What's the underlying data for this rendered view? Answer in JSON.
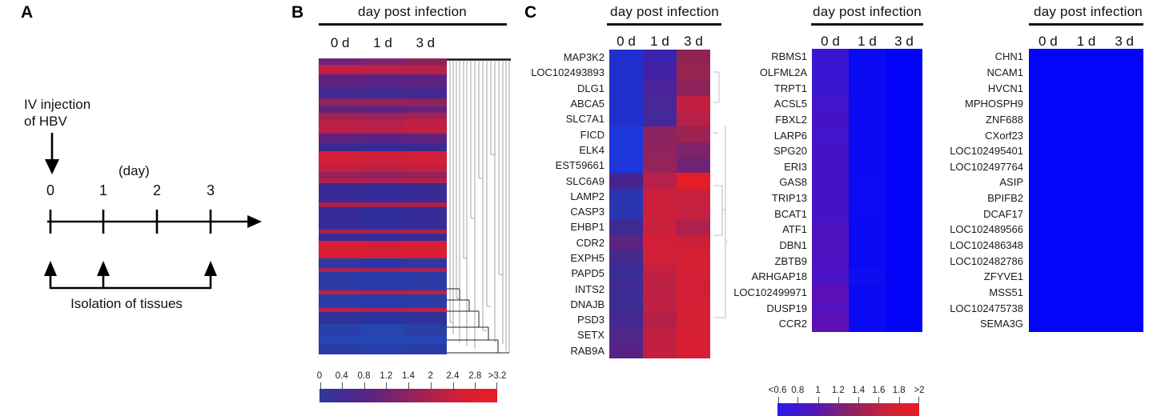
{
  "figure": {
    "panel_a": {
      "label": "A",
      "injection_line1": "IV injection",
      "injection_line2": "of HBV",
      "axis_unit": "(day)",
      "ticks": [
        "0",
        "1",
        "2",
        "3"
      ],
      "isolation_label": "Isolation of tissues"
    },
    "panel_b": {
      "label": "B",
      "header": "day post infection",
      "columns": [
        "0 d",
        "1 d",
        "3 d"
      ],
      "colorbar": {
        "labels": [
          "0",
          "0.4",
          "0.8",
          "1.2",
          "1.4",
          "2",
          "2.4",
          "2.8",
          ">3.2"
        ],
        "gradient": [
          "#2e3a9b",
          "#452b92",
          "#5c2382",
          "#7c236b",
          "#a02153",
          "#c42040",
          "#de1e2b",
          "#e81c24"
        ]
      },
      "bands": [
        [
          8,
          "#6e2379",
          "#7e2370",
          "#8a2359"
        ],
        [
          12,
          "#c11f43",
          "#bd2046",
          "#b62049"
        ],
        [
          16,
          "#5d2381",
          "#572386",
          "#5d2381"
        ],
        [
          14,
          "#43288f",
          "#3f2a93",
          "#43288f"
        ],
        [
          10,
          "#8c2363",
          "#932359",
          "#8c2360"
        ],
        [
          8,
          "#5f237f",
          "#5b2384",
          "#642379"
        ],
        [
          8,
          "#a42152",
          "#9e2157",
          "#a62151"
        ],
        [
          18,
          "#ba2046",
          "#b62049",
          "#bf2043"
        ],
        [
          12,
          "#5e2380",
          "#582385",
          "#5e2380"
        ],
        [
          10,
          "#3c2a92",
          "#382b96",
          "#3c2a92"
        ],
        [
          18,
          "#d11f37",
          "#cd1f3a",
          "#d11f37"
        ],
        [
          8,
          "#c22041",
          "#bc2045",
          "#c22041"
        ],
        [
          8,
          "#93235a",
          "#8c2360",
          "#932359"
        ],
        [
          6,
          "#b32049",
          "#ae204d",
          "#b32049"
        ],
        [
          24,
          "#3a2b94",
          "#352c99",
          "#3a2b94"
        ],
        [
          6,
          "#a92150",
          "#a32154",
          "#a92150"
        ],
        [
          28,
          "#372c97",
          "#322d9c",
          "#372c97"
        ],
        [
          5,
          "#ae204d",
          "#a92150",
          "#ae204d"
        ],
        [
          9,
          "#362c98",
          "#312d9d",
          "#362c98"
        ],
        [
          22,
          "#d71e33",
          "#d31f35",
          "#d71e33"
        ],
        [
          12,
          "#2c39a4",
          "#2838a8",
          "#2c39a4"
        ],
        [
          5,
          "#b0204c",
          "#ab204f",
          "#b0204c"
        ],
        [
          23,
          "#2a3ba6",
          "#273aa9",
          "#2a3ba6"
        ],
        [
          5,
          "#bf2043",
          "#ba2046",
          "#bf2043"
        ],
        [
          17,
          "#2a3ba6",
          "#273aa9",
          "#2a3ba6"
        ],
        [
          5,
          "#bc2045",
          "#b72048",
          "#bc2045"
        ],
        [
          15,
          "#303199",
          "#2c329e",
          "#303199"
        ],
        [
          14,
          "#2840ab",
          "#2545b0",
          "#2a3ea8"
        ],
        [
          12,
          "#2545b2",
          "#2248b6",
          "#2545b2"
        ],
        [
          12,
          "#2a3ba6",
          "#283da9",
          "#2a3ba6"
        ]
      ]
    },
    "panel_c": {
      "label": "C",
      "heatmaps": [
        {
          "header": "day post infection",
          "columns": [
            "0 d",
            "1 d",
            "3 d"
          ],
          "genes": [
            "MAP3K2",
            "LOC102493893",
            "DLG1",
            "ABCA5",
            "SLC7A1",
            "FICD",
            "ELK4",
            "EST59661",
            "SLC6A9",
            "LAMP2",
            "CASP3",
            "EHBP1",
            "CDR2",
            "EXPH5",
            "PAPD5",
            "INTS2",
            "DNAJB",
            "PSD3",
            "SETX",
            "RAB9A"
          ],
          "cells": [
            [
              "#2030ce",
              "#3b23ae",
              "#8f2353"
            ],
            [
              "#2030ce",
              "#4420a4",
              "#962350"
            ],
            [
              "#2030ce",
              "#4c2396",
              "#8c235b"
            ],
            [
              "#2130cc",
              "#4a2798",
              "#c22040"
            ],
            [
              "#2130cc",
              "#44299a",
              "#b82048"
            ],
            [
              "#1c38dc",
              "#8c2361",
              "#9e2250"
            ],
            [
              "#1c38dc",
              "#90235c",
              "#7e236a"
            ],
            [
              "#1d36da",
              "#95235a",
              "#702374"
            ],
            [
              "#45248e",
              "#b8204a",
              "#e61c26"
            ],
            [
              "#2c34b2",
              "#cc1f3b",
              "#c9203e"
            ],
            [
              "#2936b0",
              "#cc1f3b",
              "#c62040"
            ],
            [
              "#3e2b92",
              "#c9203d",
              "#ae204e"
            ],
            [
              "#5e2381",
              "#d11f37",
              "#cc1f3a"
            ],
            [
              "#44298f",
              "#d11f37",
              "#d41f35"
            ],
            [
              "#3b2d96",
              "#c22041",
              "#d41f35"
            ],
            [
              "#402b93",
              "#bb2045",
              "#d21f36"
            ],
            [
              "#3b2c96",
              "#c02042",
              "#d41f35"
            ],
            [
              "#442a90",
              "#b42047",
              "#d41f35"
            ],
            [
              "#502688",
              "#c02042",
              "#d71e33"
            ],
            [
              "#562384",
              "#c22040",
              "#d81e32"
            ]
          ]
        },
        {
          "header": "day post infection",
          "columns": [
            "0 d",
            "1 d",
            "3 d"
          ],
          "genes": [
            "RBMS1",
            "OLFML2A",
            "TRPT1",
            "ACSL5",
            "FBXL2",
            "LARP6",
            "SPG20",
            "ERI3",
            "GAS8",
            "TRIP13",
            "BCAT1",
            "ATF1",
            "DBN1",
            "ZBTB9",
            "ARHGAP18",
            "LOC102499971",
            "DUSP19",
            "CCR2"
          ],
          "cells": [
            [
              "#3917d2",
              "#0a0af2",
              "#0303fa"
            ],
            [
              "#3917d2",
              "#0a0af2",
              "#0303fa"
            ],
            [
              "#3b16d0",
              "#0a0af2",
              "#0303fa"
            ],
            [
              "#4214ca",
              "#0a0af2",
              "#0303fa"
            ],
            [
              "#4413c8",
              "#0a0af2",
              "#0303fa"
            ],
            [
              "#4214ca",
              "#0a0af2",
              "#0303fa"
            ],
            [
              "#4513c7",
              "#0a0af2",
              "#0303fa"
            ],
            [
              "#4513c7",
              "#0a0af2",
              "#0303fa"
            ],
            [
              "#4413c8",
              "#0b0bf1",
              "#0303fa"
            ],
            [
              "#4413c8",
              "#0b0bf1",
              "#0303fa"
            ],
            [
              "#4513c7",
              "#0b0bf1",
              "#0303fa"
            ],
            [
              "#4d12c0",
              "#0a0af2",
              "#0303fa"
            ],
            [
              "#4d12c0",
              "#0a0af2",
              "#0303fa"
            ],
            [
              "#4c12c1",
              "#0a0af2",
              "#0303fa"
            ],
            [
              "#4a13c3",
              "#0d0def",
              "#0303fa"
            ],
            [
              "#5b10b5",
              "#0a0af2",
              "#0303fa"
            ],
            [
              "#5511bb",
              "#0a0af2",
              "#0303fa"
            ],
            [
              "#5d10b3",
              "#0909f3",
              "#0303fa"
            ]
          ]
        },
        {
          "header": "day post infection",
          "columns": [
            "0 d",
            "1 d",
            "3 d"
          ],
          "genes": [
            "CHN1",
            "NCAM1",
            "HVCN1",
            "MPHOSPH9",
            "ZNF688",
            "CXorf23",
            "LOC102495401",
            "LOC102497764",
            "ASIP",
            "BPIFB2",
            "DCAF17",
            "LOC102489566",
            "LOC102486348",
            "LOC102482786",
            "ZFYVE1",
            "MSS51",
            "LOC102475738",
            "SEMA3G"
          ],
          "cells": "uniform:#0404fa"
        }
      ],
      "colorbar": {
        "labels": [
          "<0.6",
          "0.8",
          "1",
          "1.2",
          "1.4",
          "1.6",
          "1.8",
          ">2"
        ],
        "gradient": [
          "#2b1cec",
          "#3d18d0",
          "#5617ae",
          "#76217f",
          "#9c2158",
          "#bf2042",
          "#da1f30",
          "#e81c24"
        ]
      }
    }
  },
  "chart_data": [
    {
      "type": "heatmap",
      "panel": "B",
      "title": "day post infection",
      "x": [
        "0 d",
        "1 d",
        "3 d"
      ],
      "rows": "many unlabeled genes, hierarchically clustered (dendrogram drawn on right side)",
      "colorbar_labels": [
        "0",
        "0.4",
        "0.8",
        "1.2",
        "1.4",
        "2",
        "2.4",
        "2.8",
        ">3.2"
      ],
      "scale_range": [
        0,
        3.2
      ],
      "row_band_values_top_to_bottom": [
        1.5,
        2.6,
        1.2,
        0.9,
        1.6,
        1.3,
        2.0,
        2.5,
        1.3,
        0.9,
        3.0,
        2.6,
        1.7,
        2.2,
        0.85,
        2.1,
        0.8,
        2.15,
        0.8,
        3.1,
        0.55,
        2.15,
        0.5,
        2.5,
        0.5,
        2.45,
        0.7,
        0.45,
        0.4,
        0.5
      ],
      "legend_position": "bottom"
    },
    {
      "type": "heatmap",
      "panel": "C-left",
      "title": "day post infection",
      "x": [
        "0 d",
        "1 d",
        "3 d"
      ],
      "genes": [
        "MAP3K2",
        "LOC102493893",
        "DLG1",
        "ABCA5",
        "SLC7A1",
        "FICD",
        "ELK4",
        "EST59661",
        "SLC6A9",
        "LAMP2",
        "CASP3",
        "EHBP1",
        "CDR2",
        "EXPH5",
        "PAPD5",
        "INTS2",
        "DNAJB",
        "PSD3",
        "SETX",
        "RAB9A"
      ],
      "values": [
        [
          0.6,
          1.0,
          1.5
        ],
        [
          0.6,
          1.0,
          1.5
        ],
        [
          0.6,
          1.1,
          1.4
        ],
        [
          0.6,
          1.1,
          1.8
        ],
        [
          0.6,
          1.0,
          1.7
        ],
        [
          0.6,
          1.4,
          1.5
        ],
        [
          0.6,
          1.4,
          1.3
        ],
        [
          0.6,
          1.4,
          1.2
        ],
        [
          1.0,
          1.7,
          2.0
        ],
        [
          0.8,
          1.9,
          1.8
        ],
        [
          0.8,
          1.9,
          1.8
        ],
        [
          0.9,
          1.8,
          1.6
        ],
        [
          1.2,
          1.9,
          1.9
        ],
        [
          1.0,
          1.9,
          1.9
        ],
        [
          0.9,
          1.8,
          1.9
        ],
        [
          1.0,
          1.7,
          1.9
        ],
        [
          1.0,
          1.8,
          1.9
        ],
        [
          1.0,
          1.7,
          1.9
        ],
        [
          1.1,
          1.8,
          2.0
        ],
        [
          1.2,
          1.8,
          2.0
        ]
      ],
      "colorbar_labels": [
        "<0.6",
        "0.8",
        "1",
        "1.2",
        "1.4",
        "1.6",
        "1.8",
        ">2"
      ],
      "scale_range": [
        0.6,
        2
      ]
    },
    {
      "type": "heatmap",
      "panel": "C-middle",
      "title": "day post infection",
      "x": [
        "0 d",
        "1 d",
        "3 d"
      ],
      "genes": [
        "RBMS1",
        "OLFML2A",
        "TRPT1",
        "ACSL5",
        "FBXL2",
        "LARP6",
        "SPG20",
        "ERI3",
        "GAS8",
        "TRIP13",
        "BCAT1",
        "ATF1",
        "DBN1",
        "ZBTB9",
        "ARHGAP18",
        "LOC102499971",
        "DUSP19",
        "CCR2"
      ],
      "values": [
        [
          0.95,
          0.65,
          0.6
        ],
        [
          0.95,
          0.65,
          0.6
        ],
        [
          0.95,
          0.65,
          0.6
        ],
        [
          1.0,
          0.65,
          0.6
        ],
        [
          1.0,
          0.65,
          0.6
        ],
        [
          1.0,
          0.65,
          0.6
        ],
        [
          1.0,
          0.65,
          0.6
        ],
        [
          1.0,
          0.65,
          0.6
        ],
        [
          1.0,
          0.65,
          0.6
        ],
        [
          1.0,
          0.65,
          0.6
        ],
        [
          1.0,
          0.65,
          0.6
        ],
        [
          1.05,
          0.65,
          0.6
        ],
        [
          1.05,
          0.65,
          0.6
        ],
        [
          1.05,
          0.65,
          0.6
        ],
        [
          1.05,
          0.7,
          0.6
        ],
        [
          1.1,
          0.65,
          0.6
        ],
        [
          1.1,
          0.65,
          0.6
        ],
        [
          1.1,
          0.7,
          0.6
        ]
      ],
      "colorbar_labels": [
        "<0.6",
        "0.8",
        "1",
        "1.2",
        "1.4",
        "1.6",
        "1.8",
        ">2"
      ],
      "scale_range": [
        0.6,
        2
      ]
    },
    {
      "type": "heatmap",
      "panel": "C-right",
      "title": "day post infection",
      "x": [
        "0 d",
        "1 d",
        "3 d"
      ],
      "genes": [
        "CHN1",
        "NCAM1",
        "HVCN1",
        "MPHOSPH9",
        "ZNF688",
        "CXorf23",
        "LOC102495401",
        "LOC102497764",
        "ASIP",
        "BPIFB2",
        "DCAF17",
        "LOC102489566",
        "LOC102486348",
        "LOC102482786",
        "ZFYVE1",
        "MSS51",
        "LOC102475738",
        "SEMA3G"
      ],
      "values_note": "all cells uniform blue, < 0.6",
      "colorbar_labels": [
        "<0.6",
        "0.8",
        "1",
        "1.2",
        "1.4",
        "1.6",
        "1.8",
        ">2"
      ],
      "scale_range": [
        0.6,
        2
      ]
    }
  ]
}
